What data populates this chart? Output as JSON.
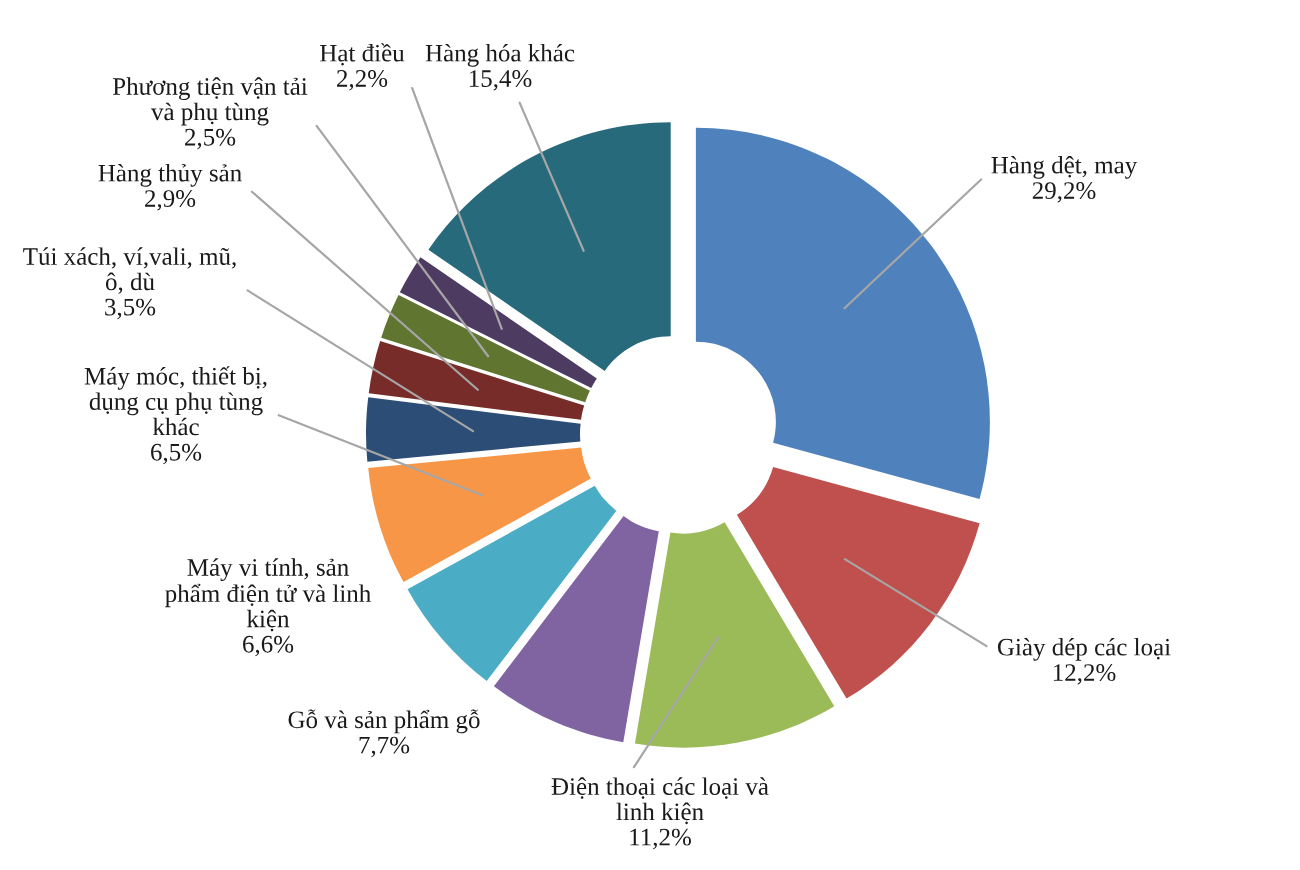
{
  "chart_data": {
    "type": "donut",
    "categories": [
      "Hàng dệt, may",
      "Giày dép các loại",
      "Điện thoại các loại và\nlinh kiện",
      "Gỗ và sản phẩm gỗ",
      "Máy vi tính, sản\nphẩm điện tử và linh\nkiện",
      "Máy móc, thiết bị,\ndụng cụ phụ tùng\nkhác",
      "Túi xách, ví,vali, mũ,\nô, dù",
      "Hàng thủy sản",
      "Phương tiện vận tải\nvà phụ tùng",
      "Hạt điều",
      "Hàng hóa khác"
    ],
    "values": [
      29.2,
      12.2,
      11.2,
      7.7,
      6.6,
      6.5,
      3.5,
      2.9,
      2.5,
      2.2,
      15.4
    ],
    "colors": [
      "#4f81bd",
      "#c0504d",
      "#9bbb59",
      "#8064a2",
      "#4bacc6",
      "#f79646",
      "#2c4d75",
      "#772c2a",
      "#5f7530",
      "#4d3b62",
      "#276a7c"
    ],
    "value_labels": [
      "29,2%",
      "12,2%",
      "11,2%",
      "7,7%",
      "6,6%",
      "6,5%",
      "3,5%",
      "2,9%",
      "2,5%",
      "2,2%",
      "15,4%"
    ]
  }
}
